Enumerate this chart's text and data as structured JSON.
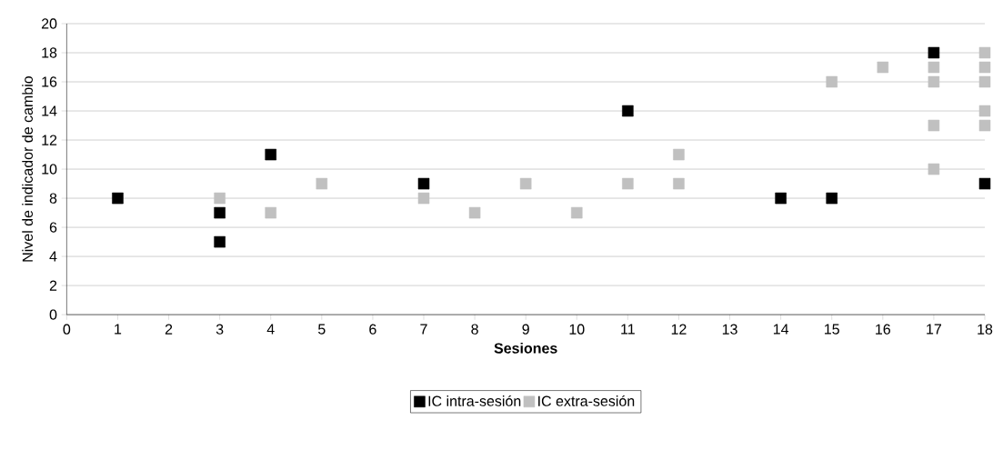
{
  "chart_data": {
    "type": "scatter",
    "xlabel": "Sesiones",
    "ylabel": "Nivel de indicador de cambio",
    "xlim": [
      0,
      18
    ],
    "ylim": [
      0,
      20
    ],
    "xticks": [
      0,
      1,
      2,
      3,
      4,
      5,
      6,
      7,
      8,
      9,
      10,
      11,
      12,
      13,
      14,
      15,
      16,
      17,
      18
    ],
    "yticks": [
      0,
      2,
      4,
      6,
      8,
      10,
      12,
      14,
      16,
      18,
      20
    ],
    "grid": "y",
    "legend": "bottom",
    "marker": "square",
    "series": [
      {
        "name": "IC  intra-sesión",
        "color": "#000000",
        "x": [
          1,
          3,
          3,
          4,
          7,
          11,
          14,
          15,
          17,
          18
        ],
        "values": [
          8,
          7,
          5,
          11,
          9,
          14,
          8,
          8,
          18,
          9
        ]
      },
      {
        "name": "IC  extra-sesión",
        "color": "#c0c0c0",
        "x": [
          3,
          4,
          5,
          7,
          8,
          9,
          10,
          11,
          12,
          12,
          15,
          16,
          17,
          17,
          17,
          17,
          18,
          18,
          18,
          18,
          18
        ],
        "values": [
          8,
          7,
          9,
          8,
          7,
          9,
          7,
          9,
          11,
          9,
          16,
          17,
          17,
          16,
          13,
          10,
          18,
          17,
          16,
          14,
          13
        ]
      }
    ]
  }
}
